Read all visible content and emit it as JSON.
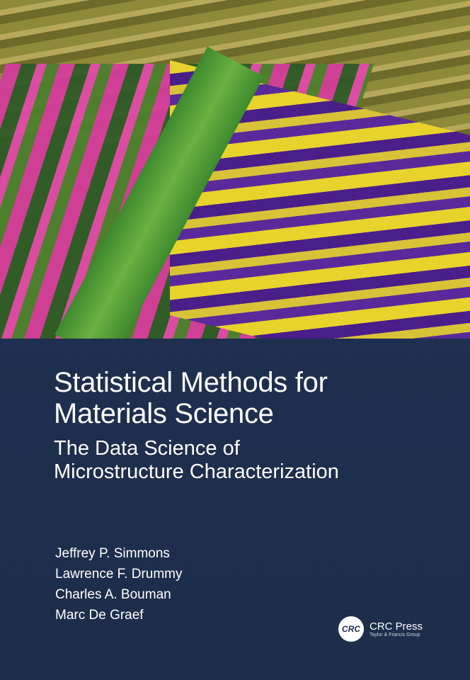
{
  "book": {
    "title_line1": "Statistical Methods for",
    "title_line2": "Materials Science",
    "subtitle_line1": "The Data Science of",
    "subtitle_line2": "Microstructure Characterization",
    "authors": [
      "Jeffrey P. Simmons",
      "Lawrence F. Drummy",
      "Charles A. Bouman",
      "Marc De Graef"
    ]
  },
  "publisher": {
    "logo_text": "CRC",
    "name": "CRC Press",
    "group": "Taylor & Francis Group"
  },
  "colors": {
    "cover_background": "#1f2f4d",
    "text": "#ffffff"
  }
}
